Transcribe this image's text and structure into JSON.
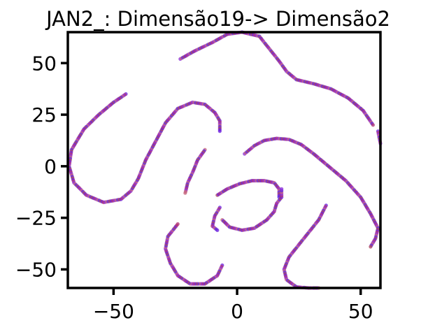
{
  "chart_data": {
    "type": "scatter",
    "title": "JAN2_: Dimensão19-> Dimensão2",
    "xlabel": "",
    "ylabel": "",
    "xlim": [
      -68.5,
      58
    ],
    "ylim": [
      -59,
      65
    ],
    "xticks": [
      -50,
      0,
      50
    ],
    "yticks": [
      50,
      25,
      0,
      -25,
      -50
    ],
    "xtick_labels": [
      "−50",
      "0",
      "50"
    ],
    "ytick_labels": [
      "50",
      "25",
      "0",
      "−25",
      "−50"
    ],
    "grid": false,
    "legend": "none",
    "point_colors": [
      "#6a1bdc",
      "#b03070",
      "#8a2bd8",
      "#c4607a",
      "#5a22e0",
      "#a8405a"
    ],
    "series": [
      {
        "points": [
          [
            -45,
            35
          ],
          [
            -50,
            31
          ],
          [
            -56,
            25
          ],
          [
            -62,
            18
          ],
          [
            -67,
            8
          ],
          [
            -68,
            0
          ],
          [
            -66,
            -8
          ],
          [
            -61,
            -14
          ],
          [
            -54,
            -17.5
          ],
          [
            -47,
            -16
          ],
          [
            -43,
            -12
          ],
          [
            -40,
            -6
          ],
          [
            -37,
            3
          ],
          [
            -33,
            12
          ],
          [
            -29,
            21
          ],
          [
            -24,
            28
          ],
          [
            -18,
            31
          ],
          [
            -13,
            30
          ],
          [
            -9,
            26
          ],
          [
            -7,
            22
          ],
          [
            -7,
            17
          ]
        ]
      },
      {
        "points": [
          [
            -23,
            52
          ],
          [
            -17,
            56
          ],
          [
            -10,
            60
          ],
          [
            -4,
            64
          ],
          [
            2,
            65
          ],
          [
            9,
            63
          ],
          [
            13,
            57
          ],
          [
            17,
            51
          ],
          [
            20,
            46
          ],
          [
            24,
            42
          ],
          [
            31,
            40
          ],
          [
            38,
            37.5
          ],
          [
            45,
            33
          ],
          [
            51,
            27
          ],
          [
            55,
            20
          ]
        ]
      },
      {
        "points": [
          [
            57,
            17
          ],
          [
            58,
            11
          ]
        ]
      },
      {
        "points": [
          [
            -13,
            8
          ],
          [
            -16,
            3
          ],
          [
            -18,
            -3
          ],
          [
            -20,
            -8
          ],
          [
            -21,
            -13
          ]
        ]
      },
      {
        "points": [
          [
            -8,
            -14
          ],
          [
            -4,
            -11
          ],
          [
            1,
            -8.5
          ],
          [
            6,
            -7
          ],
          [
            11,
            -7
          ],
          [
            15,
            -8
          ],
          [
            17,
            -11
          ],
          [
            17,
            -15
          ]
        ]
      },
      {
        "points": [
          [
            3,
            6
          ],
          [
            7,
            10
          ],
          [
            11,
            12.5
          ],
          [
            16,
            13.5
          ],
          [
            21,
            13
          ],
          [
            26,
            10.5
          ],
          [
            31,
            6
          ],
          [
            37,
            0
          ],
          [
            44,
            -7
          ],
          [
            50,
            -15
          ],
          [
            54,
            -23
          ],
          [
            57,
            -30
          ],
          [
            56,
            -35
          ],
          [
            54,
            -39
          ]
        ]
      },
      {
        "points": [
          [
            -7,
            -20
          ],
          [
            -9,
            -24
          ],
          [
            -10,
            -29
          ],
          [
            -8,
            -31
          ]
        ]
      },
      {
        "points": [
          [
            -6,
            -48
          ],
          [
            -8,
            -53
          ],
          [
            -13,
            -57
          ],
          [
            -19,
            -57
          ],
          [
            -24,
            -53
          ],
          [
            -27,
            -47
          ],
          [
            -29,
            -40
          ],
          [
            -28,
            -34
          ],
          [
            -24,
            -28
          ]
        ]
      },
      {
        "points": [
          [
            -6,
            -26
          ],
          [
            -3,
            -29.5
          ],
          [
            2,
            -31
          ],
          [
            7,
            -30
          ],
          [
            12,
            -26
          ],
          [
            15,
            -22
          ],
          [
            16,
            -18
          ],
          [
            18,
            -15
          ],
          [
            18,
            -11
          ]
        ]
      },
      {
        "points": [
          [
            36,
            -19
          ],
          [
            33,
            -26
          ],
          [
            29,
            -32
          ],
          [
            25,
            -38
          ],
          [
            21,
            -44
          ],
          [
            19,
            -50
          ],
          [
            20,
            -55
          ],
          [
            24,
            -58.5
          ],
          [
            29,
            -59
          ],
          [
            33,
            -59
          ]
        ]
      }
    ]
  }
}
